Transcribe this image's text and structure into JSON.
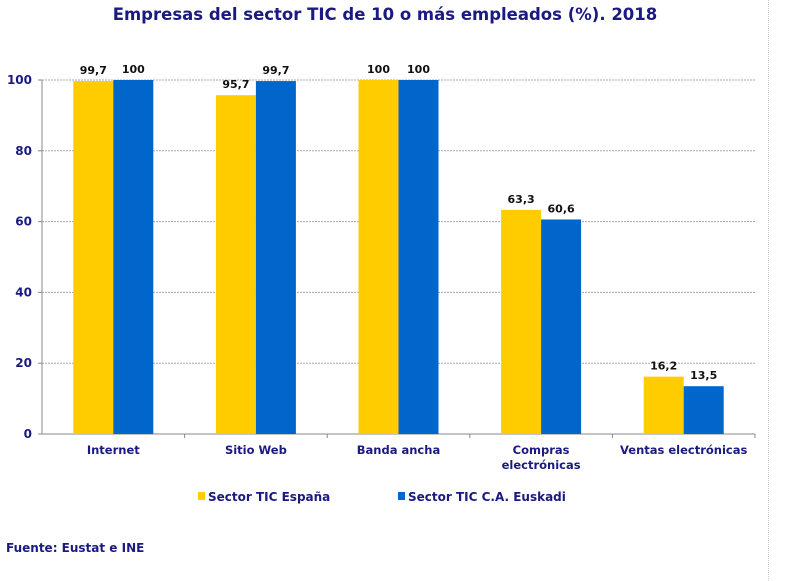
{
  "chart_data": {
    "type": "bar",
    "title": "Empresas del sector TIC de 10 o más empleados (%). 2018",
    "categories": [
      [
        "Internet"
      ],
      [
        "Sitio Web"
      ],
      [
        "Banda ancha"
      ],
      [
        "Compras",
        "electrónicas"
      ],
      [
        "Ventas  electrónicas"
      ]
    ],
    "series": [
      {
        "name": "Sector TIC España",
        "color": "#FFCC00",
        "values": [
          99.7,
          95.7,
          100,
          63.3,
          16.2
        ],
        "labels": [
          "99,7",
          "95,7",
          "100",
          "63,3",
          "16,2"
        ]
      },
      {
        "name": "Sector TIC C.A. Euskadi",
        "color": "#0066CC",
        "values": [
          100,
          99.7,
          100,
          60.6,
          13.5
        ],
        "labels": [
          "100",
          "99,7",
          "100",
          "60,6",
          "13,5"
        ]
      }
    ],
    "ylim": [
      0,
      100
    ],
    "yticks": [
      0,
      20,
      40,
      60,
      80,
      100
    ],
    "grid": true,
    "legend": "bottom",
    "xlabel": "",
    "ylabel": ""
  },
  "source": "Fuente: Eustat e INE"
}
